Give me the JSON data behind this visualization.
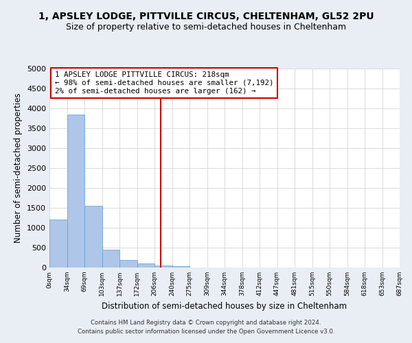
{
  "title": "1, APSLEY LODGE, PITTVILLE CIRCUS, CHELTENHAM, GL52 2PU",
  "subtitle": "Size of property relative to semi-detached houses in Cheltenham",
  "bar_values": [
    1200,
    3840,
    1550,
    440,
    190,
    100,
    60,
    30,
    0,
    0,
    0,
    0,
    0,
    0,
    0,
    0,
    0,
    0,
    0,
    0
  ],
  "bin_labels": [
    "0sqm",
    "34sqm",
    "69sqm",
    "103sqm",
    "137sqm",
    "172sqm",
    "206sqm",
    "240sqm",
    "275sqm",
    "309sqm",
    "344sqm",
    "378sqm",
    "412sqm",
    "447sqm",
    "481sqm",
    "515sqm",
    "550sqm",
    "584sqm",
    "618sqm",
    "653sqm",
    "687sqm"
  ],
  "bar_color": "#aec6e8",
  "bar_edge_color": "#5a9fd4",
  "vline_color": "#cc0000",
  "annotation_box_color": "#cc0000",
  "annotation_text_line1": "1 APSLEY LODGE PITTVILLE CIRCUS: 218sqm",
  "annotation_text_line2": "← 98% of semi-detached houses are smaller (7,192)",
  "annotation_text_line3": "2% of semi-detached houses are larger (162) →",
  "ylabel": "Number of semi-detached properties",
  "xlabel": "Distribution of semi-detached houses by size in Cheltenham",
  "footer_line1": "Contains HM Land Registry data © Crown copyright and database right 2024.",
  "footer_line2": "Contains public sector information licensed under the Open Government Licence v3.0.",
  "ylim": [
    0,
    5000
  ],
  "yticks": [
    0,
    500,
    1000,
    1500,
    2000,
    2500,
    3000,
    3500,
    4000,
    4500,
    5000
  ],
  "bg_color": "#e8eef4",
  "plot_bg_color": "#ffffff",
  "title_fontsize": 10,
  "subtitle_fontsize": 9
}
